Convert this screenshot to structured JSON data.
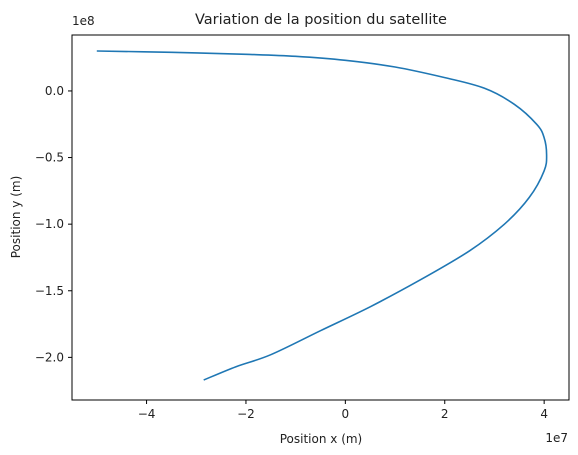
{
  "chart_data": {
    "type": "line",
    "title": "Variation de la position du satellite",
    "xlabel": "Position x (m)",
    "ylabel": "Position y (m)",
    "x_offset_label": "1e7",
    "y_offset_label": "1e8",
    "x_scale": 10000000,
    "y_scale": 100000000,
    "xlim": [
      -5.5,
      4.5
    ],
    "ylim": [
      -2.32,
      0.42
    ],
    "grid": false,
    "legend": "none",
    "line_color": "#1f77b4",
    "x_ticks": [
      {
        "value": -4,
        "label": "−4"
      },
      {
        "value": -2,
        "label": "−2"
      },
      {
        "value": 0,
        "label": "0"
      },
      {
        "value": 2,
        "label": "2"
      },
      {
        "value": 4,
        "label": "4"
      }
    ],
    "y_ticks": [
      {
        "value": 0.0,
        "label": "0.0"
      },
      {
        "value": -0.5,
        "label": "−0.5"
      },
      {
        "value": -1.0,
        "label": "−1.0"
      },
      {
        "value": -1.5,
        "label": "−1.5"
      },
      {
        "value": -2.0,
        "label": "−2.0"
      }
    ],
    "series": [
      {
        "x": [
          -5.0,
          -3.5,
          -2.0,
          -1.0,
          0.0,
          1.0,
          2.0,
          2.8,
          3.4,
          3.85,
          4.0,
          4.05,
          4.0,
          3.7,
          3.2,
          2.5,
          1.5,
          0.5,
          -0.5,
          -1.5,
          -2.2,
          -2.85
        ],
        "y": [
          0.3,
          0.29,
          0.275,
          0.26,
          0.23,
          0.18,
          0.1,
          0.02,
          -0.1,
          -0.25,
          -0.35,
          -0.48,
          -0.6,
          -0.8,
          -1.0,
          -1.2,
          -1.42,
          -1.62,
          -1.8,
          -1.98,
          -2.07,
          -2.17
        ]
      }
    ]
  }
}
